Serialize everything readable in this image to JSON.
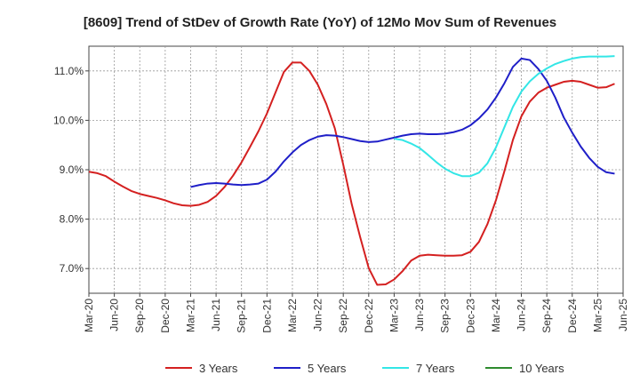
{
  "chart_data": {
    "type": "line",
    "title": "[8609]  Trend of StDev of Growth Rate (YoY) of 12Mo Mov Sum of Revenues",
    "xlabel": "",
    "ylabel": "",
    "ylim": [
      6.5,
      11.5
    ],
    "y_ticks": [
      7.0,
      8.0,
      9.0,
      10.0,
      11.0
    ],
    "y_tick_labels": [
      "7.0%",
      "8.0%",
      "9.0%",
      "10.0%",
      "11.0%"
    ],
    "x_tick_labels": [
      "Mar-20",
      "Jun-20",
      "Sep-20",
      "Dec-20",
      "Mar-21",
      "Jun-21",
      "Sep-21",
      "Dec-21",
      "Mar-22",
      "Jun-22",
      "Sep-22",
      "Dec-22",
      "Mar-23",
      "Jun-23",
      "Sep-23",
      "Dec-23",
      "Mar-24",
      "Jun-24",
      "Sep-24",
      "Dec-24",
      "Mar-25",
      "Jun-25"
    ],
    "x_start_label": "Mar-20",
    "grid": true,
    "legend_position": "bottom",
    "series": [
      {
        "name": "3 Years",
        "color": "#d42020",
        "start_index": 0,
        "values": [
          8.96,
          8.93,
          8.87,
          8.76,
          8.66,
          8.57,
          8.51,
          8.47,
          8.43,
          8.38,
          8.32,
          8.28,
          8.27,
          8.29,
          8.35,
          8.47,
          8.65,
          8.88,
          9.15,
          9.46,
          9.78,
          10.14,
          10.56,
          10.98,
          11.17,
          11.17,
          11.0,
          10.72,
          10.33,
          9.84,
          9.1,
          8.3,
          7.63,
          7.01,
          6.67,
          6.68,
          6.78,
          6.95,
          7.16,
          7.26,
          7.28,
          7.27,
          7.26,
          7.26,
          7.27,
          7.34,
          7.54,
          7.9,
          8.38,
          8.97,
          9.6,
          10.08,
          10.38,
          10.56,
          10.66,
          10.72,
          10.78,
          10.8,
          10.78,
          10.72,
          10.66,
          10.67,
          10.74
        ]
      },
      {
        "name": "5 Years",
        "color": "#1f1fc8",
        "start_index": 12,
        "values": [
          8.65,
          8.69,
          8.72,
          8.73,
          8.72,
          8.7,
          8.69,
          8.7,
          8.72,
          8.8,
          8.96,
          9.17,
          9.35,
          9.5,
          9.6,
          9.67,
          9.7,
          9.69,
          9.66,
          9.62,
          9.58,
          9.56,
          9.57,
          9.61,
          9.65,
          9.69,
          9.72,
          9.73,
          9.72,
          9.72,
          9.73,
          9.76,
          9.81,
          9.9,
          10.04,
          10.22,
          10.46,
          10.75,
          11.08,
          11.25,
          11.22,
          11.04,
          10.8,
          10.46,
          10.06,
          9.75,
          9.47,
          9.24,
          9.06,
          8.95,
          8.92
        ]
      },
      {
        "name": "7 Years",
        "color": "#33e6e6",
        "start_index": 36,
        "values": [
          9.63,
          9.6,
          9.53,
          9.44,
          9.3,
          9.15,
          9.02,
          8.93,
          8.87,
          8.87,
          8.94,
          9.13,
          9.45,
          9.86,
          10.27,
          10.58,
          10.79,
          10.94,
          11.05,
          11.14,
          11.2,
          11.25,
          11.28,
          11.29,
          11.29,
          11.29,
          11.3
        ]
      },
      {
        "name": "10 Years",
        "color": "#2e8b2e",
        "start_index": 0,
        "values": []
      }
    ]
  }
}
